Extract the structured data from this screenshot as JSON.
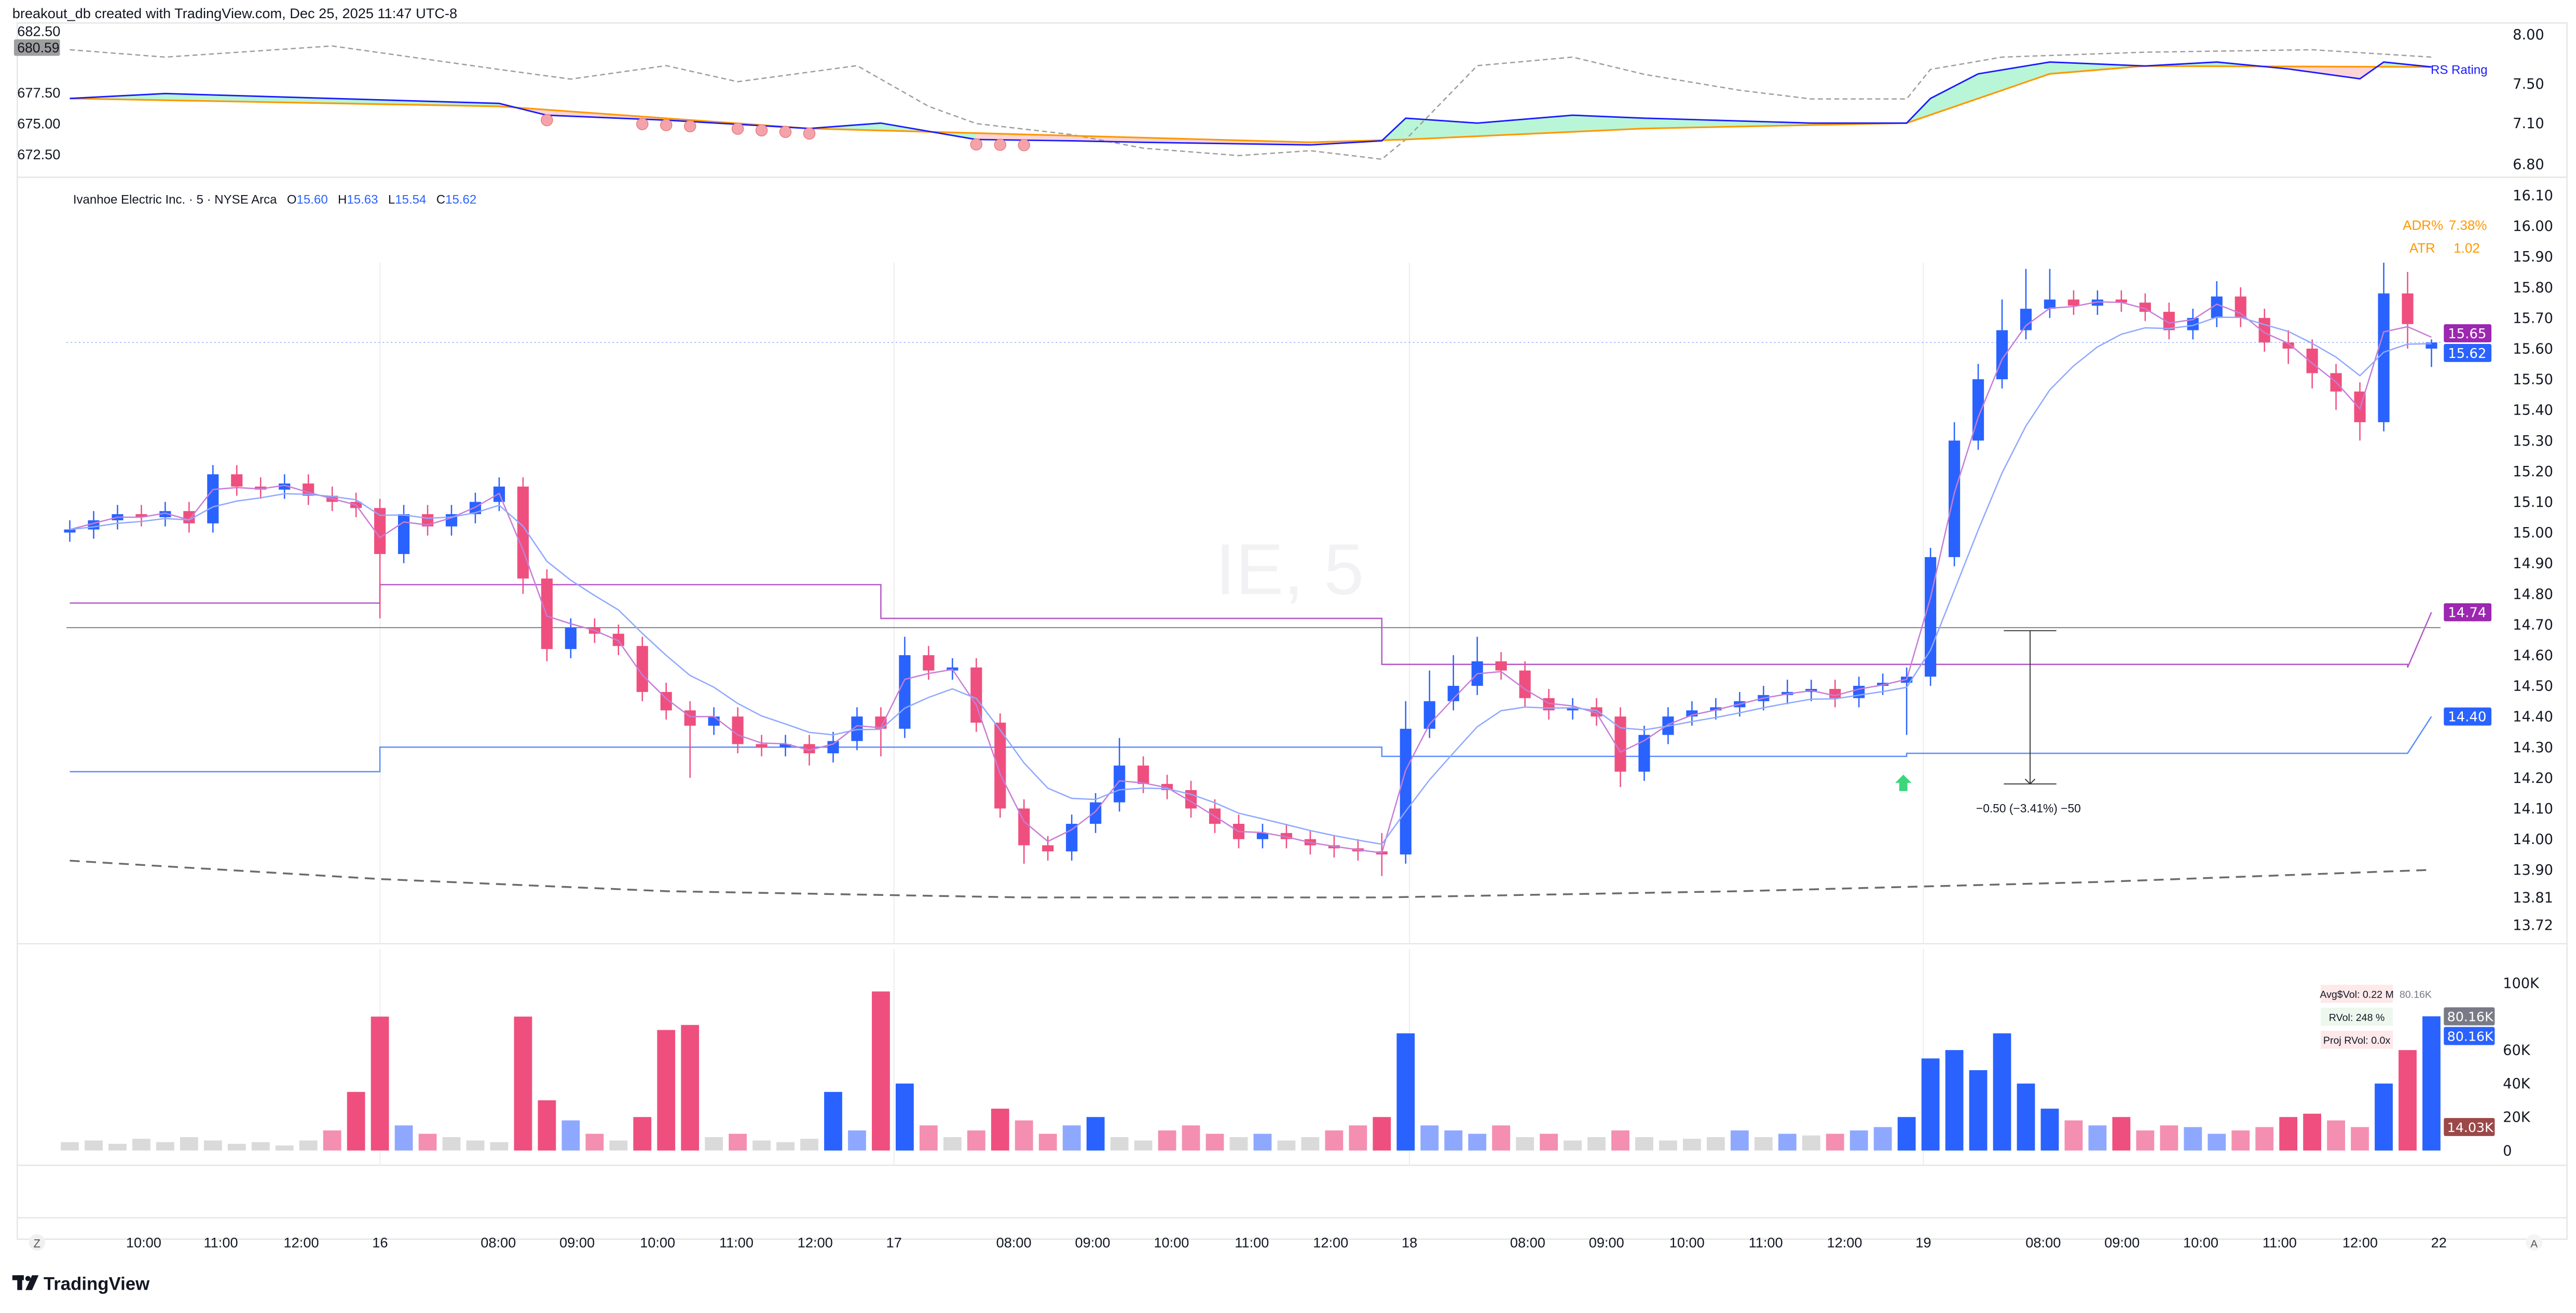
{
  "header": {
    "caption": "breakout_db created with TradingView.com, Dec 25, 2025 11:47 UTC-8"
  },
  "colors": {
    "up": "#2962ff",
    "down": "#ef4f7f",
    "ema_fast": "#c77dd6",
    "ema_slow": "#8fa8ff",
    "upper_level": "#b45ac8",
    "lower_level": "#5b8cff",
    "rs_line": "#1a1aff",
    "rs_ma": "#ff9800",
    "benchmark": "#9e9e9e"
  },
  "top_pane": {
    "left_axis": [
      "682.50",
      "677.50",
      "675.00",
      "672.50"
    ],
    "left_axis_values": [
      682.5,
      677.5,
      675.0,
      672.5
    ],
    "left_badge": "680.59",
    "right_axis": [
      "8.00",
      "7.50",
      "7.10",
      "6.80"
    ],
    "right_axis_values": [
      8.0,
      7.5,
      7.1,
      6.8
    ],
    "rs_label": "RS Rating",
    "benchmark_series": [
      [
        0,
        681.0
      ],
      [
        4,
        680.4
      ],
      [
        11,
        681.3
      ],
      [
        18,
        679.4
      ],
      [
        21,
        678.6
      ],
      [
        25,
        679.7
      ],
      [
        28,
        678.4
      ],
      [
        33,
        679.7
      ],
      [
        36,
        676.4
      ],
      [
        38,
        675.0
      ],
      [
        42,
        674.1
      ],
      [
        45,
        673.0
      ],
      [
        49,
        672.4
      ],
      [
        52,
        672.8
      ],
      [
        55,
        672.1
      ],
      [
        56,
        673.7
      ],
      [
        59,
        679.7
      ],
      [
        63,
        680.4
      ],
      [
        66,
        679.0
      ],
      [
        70,
        677.7
      ],
      [
        73,
        677.0
      ],
      [
        77,
        677.0
      ],
      [
        78,
        679.4
      ],
      [
        81,
        680.4
      ],
      [
        87,
        680.8
      ],
      [
        94,
        681.0
      ],
      [
        99,
        680.4
      ]
    ],
    "rs_series": [
      [
        0,
        7.35
      ],
      [
        4,
        7.4
      ],
      [
        11,
        7.35
      ],
      [
        18,
        7.3
      ],
      [
        20,
        7.18
      ],
      [
        25,
        7.13
      ],
      [
        31,
        7.06
      ],
      [
        34,
        7.1
      ],
      [
        38,
        6.98
      ],
      [
        42,
        6.97
      ],
      [
        45,
        6.96
      ],
      [
        52,
        6.94
      ],
      [
        55,
        6.97
      ],
      [
        56,
        7.15
      ],
      [
        59,
        7.1
      ],
      [
        63,
        7.18
      ],
      [
        66,
        7.15
      ],
      [
        73,
        7.1
      ],
      [
        77,
        7.1
      ],
      [
        78,
        7.35
      ],
      [
        80,
        7.6
      ],
      [
        83,
        7.72
      ],
      [
        87,
        7.68
      ],
      [
        90,
        7.72
      ],
      [
        93,
        7.65
      ],
      [
        96,
        7.55
      ],
      [
        97,
        7.72
      ],
      [
        99,
        7.67
      ]
    ],
    "rs_ma_series": [
      [
        0,
        7.35
      ],
      [
        18,
        7.27
      ],
      [
        31,
        7.06
      ],
      [
        52,
        6.96
      ],
      [
        56,
        6.98
      ],
      [
        66,
        7.06
      ],
      [
        77,
        7.1
      ],
      [
        83,
        7.6
      ],
      [
        87,
        7.68
      ],
      [
        99,
        7.67
      ]
    ],
    "rs_weak_markers": [
      20,
      24,
      25,
      26,
      28,
      29,
      30,
      31,
      38,
      39,
      40
    ]
  },
  "legend": {
    "symbol": "Ivanhoe Electric Inc. · 5 · NYSE Arca",
    "o_label": "O",
    "o": "15.60",
    "h_label": "H",
    "h": "15.63",
    "l_label": "L",
    "l": "15.54",
    "c_label": "C",
    "c": "15.62"
  },
  "watermark": "IE, 5",
  "stats": {
    "adr_label": "ADR%",
    "adr": "7.38%",
    "atr_label": "ATR",
    "atr": "1.02"
  },
  "price_axis": [
    "16.10",
    "16.00",
    "15.90",
    "15.80",
    "15.70",
    "15.60",
    "15.50",
    "15.40",
    "15.30",
    "15.20",
    "15.10",
    "15.00",
    "14.90",
    "14.80",
    "14.70",
    "14.60",
    "14.50",
    "14.40",
    "14.30",
    "14.20",
    "14.10",
    "14.00",
    "13.90",
    "13.81",
    "13.72"
  ],
  "price_badges": [
    {
      "text": "15.65",
      "value": 15.65,
      "color": "#9c27b0"
    },
    {
      "text": "15.62",
      "value": 15.62,
      "color": "#2962ff"
    },
    {
      "text": "14.74",
      "value": 14.74,
      "color": "#9c27b0"
    },
    {
      "text": "14.40",
      "value": 14.4,
      "color": "#2962ff"
    }
  ],
  "chart_data": {
    "type": "candlestick",
    "interval": "5",
    "ylim": [
      13.72,
      16.1
    ],
    "candles_ohlc": [
      [
        15.0,
        15.04,
        14.97,
        15.01
      ],
      [
        15.01,
        15.07,
        14.98,
        15.04
      ],
      [
        15.04,
        15.09,
        15.01,
        15.06
      ],
      [
        15.06,
        15.09,
        15.02,
        15.05
      ],
      [
        15.05,
        15.1,
        15.02,
        15.07
      ],
      [
        15.07,
        15.1,
        15.0,
        15.03
      ],
      [
        15.03,
        15.22,
        15.0,
        15.19
      ],
      [
        15.19,
        15.22,
        15.12,
        15.15
      ],
      [
        15.15,
        15.18,
        15.11,
        15.14
      ],
      [
        15.14,
        15.19,
        15.11,
        15.16
      ],
      [
        15.16,
        15.19,
        15.09,
        15.12
      ],
      [
        15.12,
        15.15,
        15.07,
        15.1
      ],
      [
        15.1,
        15.13,
        15.05,
        15.08
      ],
      [
        15.08,
        15.11,
        14.72,
        14.93
      ],
      [
        14.93,
        15.09,
        14.9,
        15.06
      ],
      [
        15.06,
        15.09,
        14.99,
        15.02
      ],
      [
        15.02,
        15.09,
        14.99,
        15.06
      ],
      [
        15.06,
        15.13,
        15.03,
        15.1
      ],
      [
        15.1,
        15.18,
        15.07,
        15.15
      ],
      [
        15.15,
        15.18,
        14.8,
        14.85
      ],
      [
        14.85,
        14.88,
        14.58,
        14.62
      ],
      [
        14.62,
        14.72,
        14.59,
        14.69
      ],
      [
        14.69,
        14.72,
        14.64,
        14.67
      ],
      [
        14.67,
        14.7,
        14.6,
        14.63
      ],
      [
        14.63,
        14.66,
        14.45,
        14.48
      ],
      [
        14.48,
        14.51,
        14.39,
        14.42
      ],
      [
        14.42,
        14.45,
        14.2,
        14.37
      ],
      [
        14.37,
        14.43,
        14.34,
        14.4
      ],
      [
        14.4,
        14.43,
        14.28,
        14.31
      ],
      [
        14.31,
        14.34,
        14.27,
        14.3
      ],
      [
        14.3,
        14.34,
        14.27,
        14.31
      ],
      [
        14.31,
        14.34,
        14.24,
        14.28
      ],
      [
        14.28,
        14.35,
        14.25,
        14.32
      ],
      [
        14.32,
        14.43,
        14.29,
        14.4
      ],
      [
        14.4,
        14.43,
        14.27,
        14.36
      ],
      [
        14.36,
        14.66,
        14.33,
        14.6
      ],
      [
        14.6,
        14.63,
        14.52,
        14.55
      ],
      [
        14.55,
        14.59,
        14.52,
        14.56
      ],
      [
        14.56,
        14.59,
        14.35,
        14.38
      ],
      [
        14.38,
        14.41,
        14.07,
        14.1
      ],
      [
        14.1,
        14.13,
        13.92,
        13.98
      ],
      [
        13.98,
        14.01,
        13.93,
        13.96
      ],
      [
        13.96,
        14.08,
        13.93,
        14.05
      ],
      [
        14.05,
        14.15,
        14.02,
        14.12
      ],
      [
        14.12,
        14.33,
        14.09,
        14.24
      ],
      [
        14.24,
        14.27,
        14.15,
        14.18
      ],
      [
        14.18,
        14.21,
        14.13,
        14.16
      ],
      [
        14.16,
        14.19,
        14.07,
        14.1
      ],
      [
        14.1,
        14.13,
        14.02,
        14.05
      ],
      [
        14.05,
        14.08,
        13.97,
        14.0
      ],
      [
        14.0,
        14.05,
        13.97,
        14.02
      ],
      [
        14.02,
        14.05,
        13.97,
        14.0
      ],
      [
        14.0,
        14.03,
        13.95,
        13.98
      ],
      [
        13.98,
        14.01,
        13.94,
        13.97
      ],
      [
        13.97,
        14.0,
        13.93,
        13.96
      ],
      [
        13.96,
        14.02,
        13.88,
        13.95
      ],
      [
        13.95,
        14.45,
        13.92,
        14.36
      ],
      [
        14.36,
        14.55,
        14.33,
        14.45
      ],
      [
        14.45,
        14.6,
        14.42,
        14.5
      ],
      [
        14.5,
        14.66,
        14.47,
        14.58
      ],
      [
        14.58,
        14.61,
        14.52,
        14.55
      ],
      [
        14.55,
        14.58,
        14.43,
        14.46
      ],
      [
        14.46,
        14.49,
        14.39,
        14.42
      ],
      [
        14.42,
        14.46,
        14.39,
        14.43
      ],
      [
        14.43,
        14.46,
        14.37,
        14.4
      ],
      [
        14.4,
        14.43,
        14.17,
        14.22
      ],
      [
        14.22,
        14.37,
        14.19,
        14.34
      ],
      [
        14.34,
        14.43,
        14.31,
        14.4
      ],
      [
        14.4,
        14.45,
        14.37,
        14.42
      ],
      [
        14.42,
        14.46,
        14.39,
        14.43
      ],
      [
        14.43,
        14.48,
        14.4,
        14.45
      ],
      [
        14.45,
        14.5,
        14.42,
        14.47
      ],
      [
        14.47,
        14.52,
        14.44,
        14.48
      ],
      [
        14.48,
        14.52,
        14.45,
        14.49
      ],
      [
        14.49,
        14.52,
        14.43,
        14.46
      ],
      [
        14.46,
        14.53,
        14.43,
        14.5
      ],
      [
        14.5,
        14.54,
        14.47,
        14.51
      ],
      [
        14.51,
        14.56,
        14.34,
        14.53
      ],
      [
        14.53,
        14.95,
        14.5,
        14.92
      ],
      [
        14.92,
        15.36,
        14.89,
        15.3
      ],
      [
        15.3,
        15.55,
        15.27,
        15.5
      ],
      [
        15.5,
        15.76,
        15.47,
        15.66
      ],
      [
        15.66,
        15.86,
        15.63,
        15.73
      ],
      [
        15.73,
        15.86,
        15.7,
        15.76
      ],
      [
        15.76,
        15.79,
        15.71,
        15.74
      ],
      [
        15.74,
        15.79,
        15.71,
        15.76
      ],
      [
        15.76,
        15.79,
        15.72,
        15.75
      ],
      [
        15.75,
        15.78,
        15.69,
        15.72
      ],
      [
        15.72,
        15.75,
        15.63,
        15.66
      ],
      [
        15.66,
        15.73,
        15.63,
        15.7
      ],
      [
        15.7,
        15.82,
        15.67,
        15.77
      ],
      [
        15.77,
        15.8,
        15.67,
        15.7
      ],
      [
        15.7,
        15.73,
        15.59,
        15.62
      ],
      [
        15.62,
        15.66,
        15.55,
        15.6
      ],
      [
        15.6,
        15.63,
        15.47,
        15.52
      ],
      [
        15.52,
        15.55,
        15.4,
        15.46
      ],
      [
        15.46,
        15.49,
        15.3,
        15.36
      ],
      [
        15.36,
        15.88,
        15.33,
        15.78
      ],
      [
        15.78,
        15.85,
        15.6,
        15.68
      ],
      [
        15.6,
        15.63,
        15.54,
        15.62
      ]
    ],
    "volume_k": [
      5,
      6,
      4,
      7,
      5,
      8,
      6,
      4,
      5,
      3,
      6,
      12,
      35,
      80,
      15,
      10,
      8,
      6,
      5,
      80,
      30,
      18,
      10,
      6,
      20,
      72,
      75,
      8,
      10,
      6,
      5,
      7,
      35,
      12,
      95,
      40,
      15,
      8,
      12,
      25,
      18,
      10,
      15,
      20,
      8,
      6,
      12,
      15,
      10,
      8,
      10,
      6,
      8,
      12,
      15,
      20,
      70,
      15,
      12,
      10,
      15,
      8,
      10,
      6,
      8,
      12,
      8,
      6,
      7,
      8,
      12,
      8,
      10,
      9,
      10,
      12,
      14,
      20,
      55,
      60,
      48,
      70,
      40,
      25,
      18,
      15,
      20,
      12,
      15,
      14,
      10,
      12,
      14,
      20,
      22,
      18,
      14,
      40,
      60,
      80.16
    ],
    "upper_level_steps": [
      [
        0,
        14.77
      ],
      [
        13,
        14.83
      ],
      [
        34,
        14.72
      ],
      [
        55,
        14.57
      ],
      [
        98,
        14.56
      ],
      [
        99,
        14.74
      ]
    ],
    "lower_level_steps": [
      [
        0,
        14.22
      ],
      [
        13,
        14.3
      ],
      [
        55,
        14.27
      ],
      [
        77,
        14.28
      ],
      [
        98,
        14.28
      ],
      [
        99,
        14.4
      ]
    ],
    "reference_line": 14.69,
    "curve_dashed": [
      [
        0,
        13.93
      ],
      [
        13,
        13.87
      ],
      [
        25,
        13.83
      ],
      [
        40,
        13.81
      ],
      [
        55,
        13.81
      ],
      [
        70,
        13.83
      ],
      [
        85,
        13.86
      ],
      [
        99,
        13.9
      ]
    ],
    "buy_signal_bar": 77,
    "measure": {
      "from": 14.68,
      "to": 14.18,
      "label": "−0.50 (−3.41%) −50"
    }
  },
  "volume_pane": {
    "axis": [
      "100K",
      "60K",
      "40K",
      "20K",
      "0"
    ],
    "axis_values": [
      100,
      60,
      40,
      20,
      0
    ],
    "badges": [
      {
        "text": "80.16K",
        "color": "#787b86"
      },
      {
        "text": "80.16K",
        "color": "#2962ff"
      },
      {
        "text": "14.03K",
        "color": "#9c4848"
      }
    ],
    "avg_dollar_vol": "Avg$Vol: 0.22 M",
    "rvol": "RVol: 248 %",
    "proj_rvol": "Proj RVol: 0.0x",
    "overlap_label": "80.16K"
  },
  "time_axis": [
    "10:00",
    "11:00",
    "12:00",
    "16",
    "08:00",
    "09:00",
    "10:00",
    "11:00",
    "12:00",
    "17",
    "08:00",
    "09:00",
    "10:00",
    "11:00",
    "12:00",
    "18",
    "08:00",
    "09:00",
    "10:00",
    "11:00",
    "12:00",
    "19",
    "08:00",
    "09:00",
    "10:00",
    "11:00",
    "12:00",
    "22"
  ],
  "buttons": {
    "zoom": "Z",
    "auto": "A"
  },
  "footer": {
    "brand": "TradingView"
  }
}
